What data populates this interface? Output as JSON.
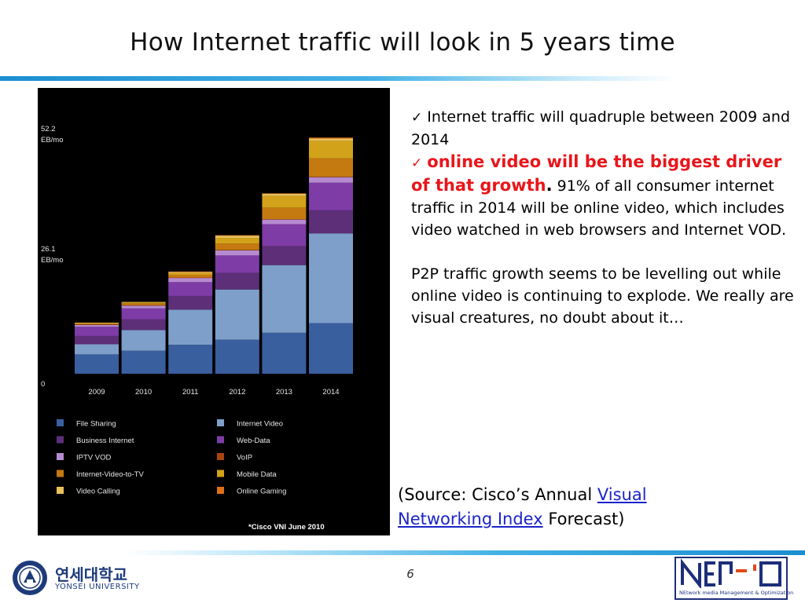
{
  "slide": {
    "title": "How Internet traffic will look in 5 years time",
    "page_number": "6"
  },
  "bullets": {
    "check": "✓",
    "b1": "Internet traffic will quadruple between 2009 and 2014",
    "b2_red_bold": "online video will be the biggest driver of that growth",
    "b2_black_bold": ".",
    "b2_rest": "91% of all consumer internet traffic in 2014 will be online video, which includes video watched in web browsers and Internet VOD.",
    "p2p": "P2P traffic growth seems to be levelling out while online video is continuing to explode. We really are visual creatures, no doubt about it…"
  },
  "source": {
    "prefix": "(Source: Cisco’s  Annual ",
    "link_text": "Visual Networking Index",
    "suffix": " Forecast)"
  },
  "logos": {
    "yonsei_korean": "연세대학교",
    "yonsei_english": "YONSEI UNIVERSITY",
    "nemo_subtitle": "NEtwork media Management & Optimization",
    "nemo_letters": "NEMO"
  },
  "colors": {
    "title_rule": "#1b8ed0",
    "accent_red": "#e8161b",
    "link_blue": "#1a24c8"
  },
  "chart_data": {
    "type": "bar",
    "stacked": true,
    "title": "",
    "note": "*Cisco VNI June 2010",
    "categories": [
      "2009",
      "2010",
      "2011",
      "2012",
      "2013",
      "2014"
    ],
    "y_tick_labels": [
      {
        "value": 52.2,
        "lines": [
          "52.2",
          "EB/mo"
        ]
      },
      {
        "value": 26.1,
        "lines": [
          "26.1",
          "EB/mo"
        ]
      },
      {
        "value": 0,
        "lines": [
          "0"
        ]
      }
    ],
    "ylim": [
      0,
      52.2
    ],
    "series": [
      {
        "name": "File Sharing",
        "color": "#3a5f9f",
        "values": [
          4.2,
          5.0,
          6.3,
          7.4,
          8.9,
          11.0
        ]
      },
      {
        "name": "Internet Video",
        "color": "#7d9fc9",
        "values": [
          2.2,
          4.5,
          7.6,
          10.9,
          14.7,
          19.5
        ]
      },
      {
        "name": "Business Internet",
        "color": "#5c2f78",
        "values": [
          1.8,
          2.3,
          3.0,
          3.6,
          4.1,
          5.0
        ]
      },
      {
        "name": "Web-Data",
        "color": "#7e3ca6",
        "values": [
          2.0,
          2.4,
          3.0,
          3.8,
          4.8,
          6.0
        ]
      },
      {
        "name": "IPTV VOD",
        "color": "#b58ad1",
        "values": [
          0.4,
          0.6,
          0.9,
          1.1,
          1.0,
          1.2
        ]
      },
      {
        "name": "VoIP",
        "color": "#a9440e",
        "values": [
          0.1,
          0.1,
          0.1,
          0.1,
          0.1,
          0.1
        ]
      },
      {
        "name": "Internet-Video-to-TV",
        "color": "#c47a10",
        "values": [
          0.2,
          0.4,
          0.6,
          1.4,
          2.5,
          4.0
        ]
      },
      {
        "name": "Mobile Data",
        "color": "#d3a21b",
        "values": [
          0.1,
          0.2,
          0.4,
          1.2,
          2.5,
          3.8
        ]
      },
      {
        "name": "Video Calling",
        "color": "#e8c05a",
        "values": [
          0.1,
          0.1,
          0.2,
          0.5,
          0.5,
          0.5
        ]
      },
      {
        "name": "Online Gaming",
        "color": "#e06f1a",
        "values": [
          0.0,
          0.0,
          0.1,
          0.1,
          0.1,
          0.2
        ]
      }
    ],
    "legend_order": [
      [
        "File Sharing",
        "Internet Video"
      ],
      [
        "Business Internet",
        "Web-Data"
      ],
      [
        "IPTV VOD",
        "VoIP"
      ],
      [
        "Internet-Video-to-TV",
        "Mobile Data"
      ],
      [
        "Video Calling",
        "Online Gaming"
      ]
    ],
    "legend_placement": "bottom"
  }
}
